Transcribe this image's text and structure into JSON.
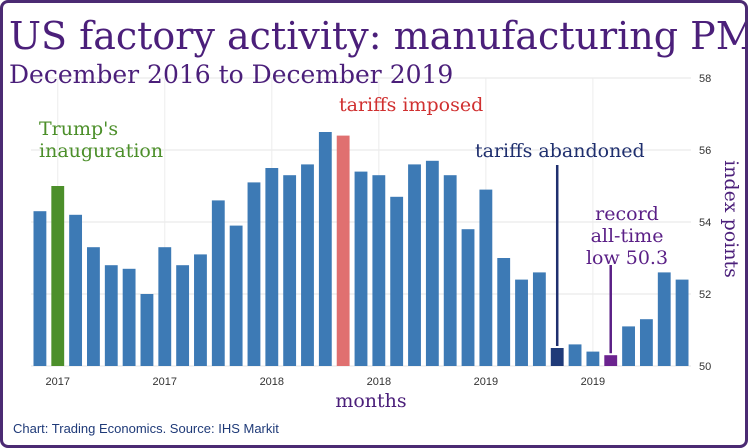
{
  "chart_data": {
    "type": "bar",
    "title": "US factory activity: manufacturing PMI",
    "subtitle": "December 2016 to December 2019",
    "xlabel": "months",
    "ylabel": "index points",
    "ylim": [
      50,
      58
    ],
    "yticks": [
      50,
      52,
      54,
      56,
      58
    ],
    "xtick_labels": [
      {
        "label": "2017",
        "at_index": 1
      },
      {
        "label": "2017",
        "at_index": 7
      },
      {
        "label": "2018",
        "at_index": 13
      },
      {
        "label": "2018",
        "at_index": 19
      },
      {
        "label": "2019",
        "at_index": 25
      },
      {
        "label": "2019",
        "at_index": 31
      }
    ],
    "values": [
      54.3,
      55.0,
      54.2,
      53.3,
      52.8,
      52.7,
      52.0,
      53.3,
      52.8,
      53.1,
      54.6,
      53.9,
      55.1,
      55.5,
      55.3,
      55.6,
      56.5,
      56.4,
      55.4,
      55.3,
      54.7,
      55.6,
      55.7,
      55.3,
      53.8,
      54.9,
      53.0,
      52.4,
      52.6,
      50.5,
      50.6,
      50.4,
      50.3,
      51.1,
      51.3,
      52.6,
      52.4
    ],
    "highlights": [
      {
        "index": 1,
        "color": "#4c8f2a"
      },
      {
        "index": 17,
        "color": "#e07070"
      },
      {
        "index": 29,
        "color": "#1f3a78"
      },
      {
        "index": 32,
        "color": "#6b238f"
      }
    ],
    "default_color": "#3d7ab5",
    "annotations": [
      {
        "lines": [
          "Trump's",
          "inauguration"
        ],
        "color": "#4c8f2a",
        "index": 1
      },
      {
        "lines": [
          "tariffs imposed"
        ],
        "color": "#d03030",
        "index": 17
      },
      {
        "lines": [
          "tariffs abandoned"
        ],
        "color": "#1f2f6e",
        "index": 29
      },
      {
        "lines": [
          "record",
          "all-time",
          "low 50.3"
        ],
        "color": "#5a1f86",
        "index": 32
      }
    ],
    "grid": true
  },
  "source_text": "Chart: Trading Economics. Source: IHS Markit"
}
